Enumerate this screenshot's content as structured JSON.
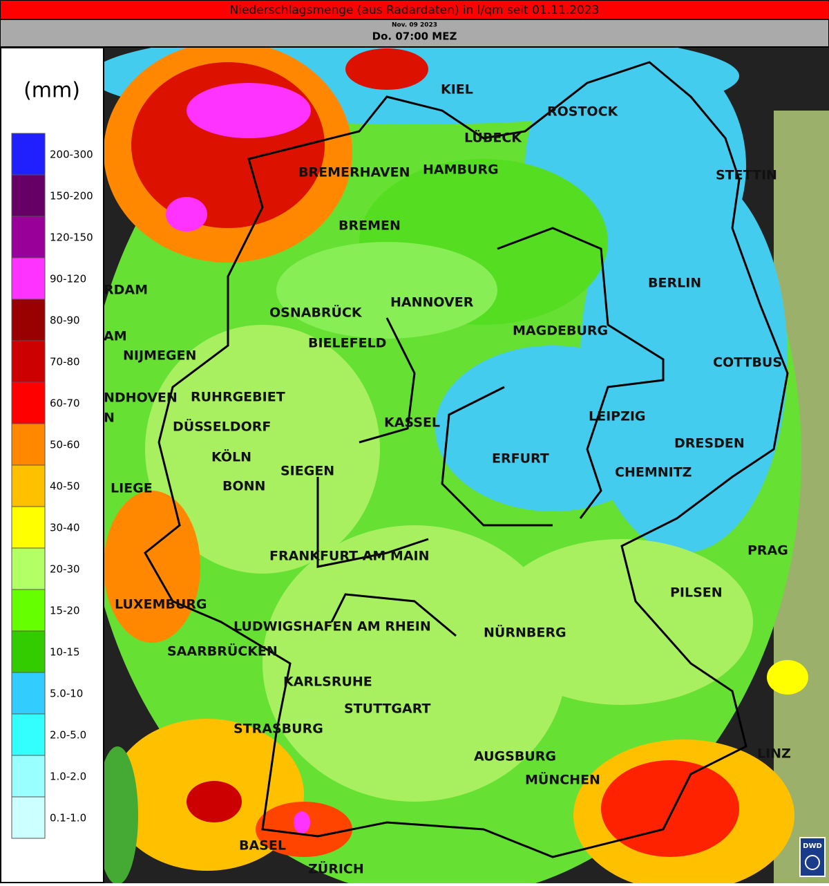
{
  "header": {
    "title": "Niederschlagsmenge (aus Radardaten) in l/qm seit 01.11.2023",
    "date": "Nov. 09 2023",
    "time": "Do. 07:00 MEZ"
  },
  "legend": {
    "unit": "(mm)",
    "items": [
      {
        "label": "200-300",
        "color": "#2020ff"
      },
      {
        "label": "150-200",
        "color": "#660066"
      },
      {
        "label": "120-150",
        "color": "#990099"
      },
      {
        "label": "90-120",
        "color": "#ff33ff"
      },
      {
        "label": "80-90",
        "color": "#990000"
      },
      {
        "label": "70-80",
        "color": "#cc0000"
      },
      {
        "label": "60-70",
        "color": "#ff0000"
      },
      {
        "label": "50-60",
        "color": "#ff8800"
      },
      {
        "label": "40-50",
        "color": "#ffc000"
      },
      {
        "label": "30-40",
        "color": "#ffff00"
      },
      {
        "label": "20-30",
        "color": "#b3ff66"
      },
      {
        "label": "15-20",
        "color": "#66ff00"
      },
      {
        "label": "10-15",
        "color": "#33cc00"
      },
      {
        "label": "5.0-10",
        "color": "#33ccff"
      },
      {
        "label": "2.0-5.0",
        "color": "#33ffff"
      },
      {
        "label": "1.0-2.0",
        "color": "#99ffff"
      },
      {
        "label": "0.1-1.0",
        "color": "#ccffff"
      }
    ]
  },
  "cities": [
    "KIEL",
    "ROSTOCK",
    "LÜBECK",
    "STETTIN",
    "BREMERHAVEN",
    "HAMBURG",
    "BREMEN",
    "BERLIN",
    "RDAM",
    "AM",
    "OSNABRÜCK",
    "HANNOVER",
    "MAGDEBURG",
    "BIELEFELD",
    "NIJMEGEN",
    "COTTBUS",
    "RUHRGEBIET",
    "NDHOVEN",
    "N",
    "LEIPZIG",
    "KASSEL",
    "DÜSSELDORF",
    "DRESDEN",
    "KÖLN",
    "ERFURT",
    "SIEGEN",
    "CHEMNITZ",
    "BONN",
    "LIEGE",
    "PRAG",
    "FRANKFURT AM MAIN",
    "PILSEN",
    "LUXEMBURG",
    "LUDWIGSHAFEN AM RHEIN",
    "NÜRNBERG",
    "SAARBRÜCKEN",
    "KARLSRUHE",
    "STUTTGART",
    "STRASBURG",
    "LINZ",
    "AUGSBURG",
    "MÜNCHEN",
    "BASEL",
    "ZÜRICH"
  ],
  "logo": "DWD"
}
